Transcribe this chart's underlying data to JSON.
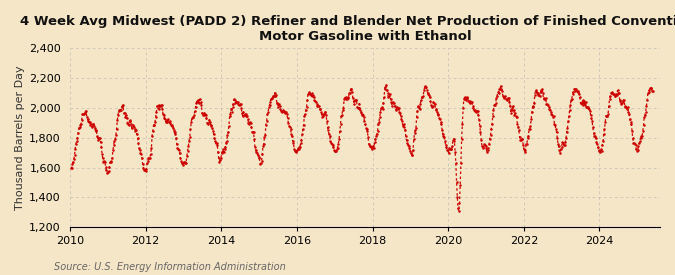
{
  "title": "4 Week Avg Midwest (PADD 2) Refiner and Blender Net Production of Finished Conventional\nMotor Gasoline with Ethanol",
  "ylabel": "Thousand Barrels per Day",
  "source": "Source: U.S. Energy Information Administration",
  "ylim": [
    1200,
    2400
  ],
  "yticks": [
    1200,
    1400,
    1600,
    1800,
    2000,
    2200,
    2400
  ],
  "xlim_start": 2010.0,
  "xlim_end": 2025.6,
  "xticks": [
    2010,
    2012,
    2014,
    2016,
    2018,
    2020,
    2022,
    2024
  ],
  "line_color": "#cc0000",
  "bg_color": "#f5e6c8",
  "plot_bg_color": "#f5e6c8",
  "grid_color": "#aaaaaa",
  "title_fontsize": 9.5,
  "ylabel_fontsize": 8,
  "source_fontsize": 7,
  "tick_fontsize": 8
}
